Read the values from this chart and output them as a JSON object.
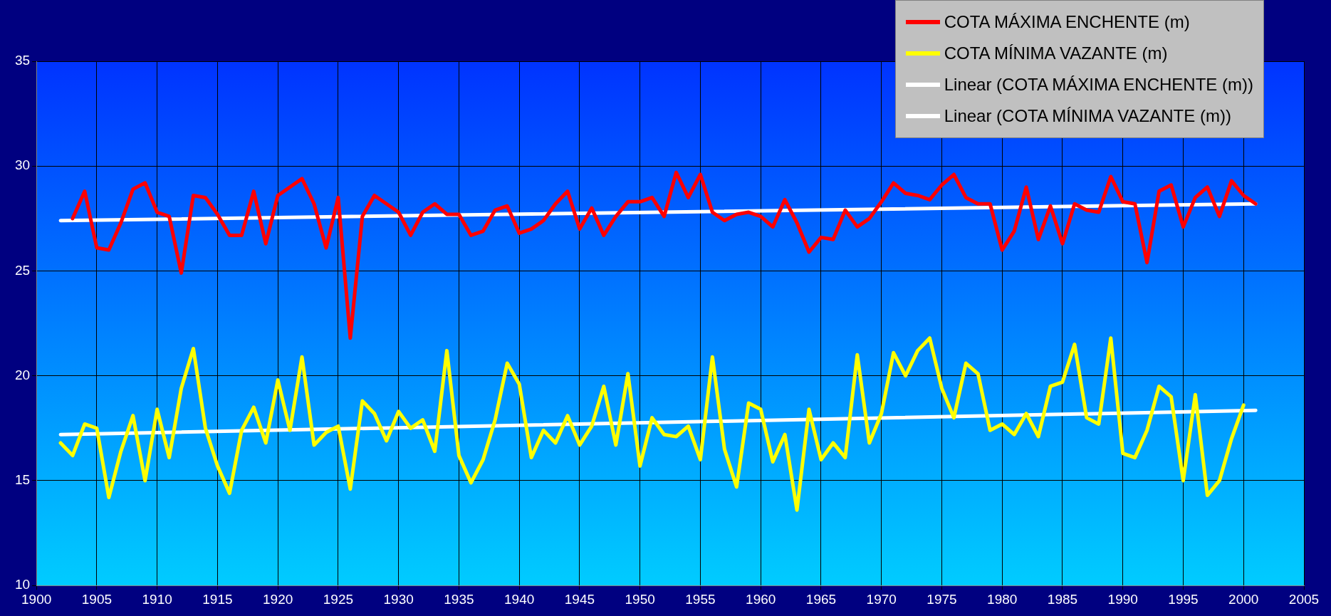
{
  "chart_data": {
    "type": "line",
    "xlim": [
      1900,
      2005
    ],
    "xticks": [
      1900,
      1905,
      1910,
      1915,
      1920,
      1925,
      1930,
      1935,
      1940,
      1945,
      1950,
      1955,
      1960,
      1965,
      1970,
      1975,
      1980,
      1985,
      1990,
      1995,
      2000,
      2005
    ],
    "ylim": [
      10,
      35
    ],
    "yticks": [
      10,
      15,
      20,
      25,
      30,
      35
    ],
    "grid": true,
    "legend": "top right",
    "marker": "none",
    "line_style": "solid",
    "series": [
      {
        "name": "COTA MÁXIMA ENCHENTE (m)",
        "color": "#ff0000",
        "x": [
          1903,
          1904,
          1905,
          1906,
          1907,
          1908,
          1909,
          1910,
          1911,
          1912,
          1913,
          1914,
          1915,
          1916,
          1917,
          1918,
          1919,
          1920,
          1921,
          1922,
          1923,
          1924,
          1925,
          1926,
          1927,
          1928,
          1929,
          1930,
          1931,
          1932,
          1933,
          1934,
          1935,
          1936,
          1937,
          1938,
          1939,
          1940,
          1941,
          1942,
          1943,
          1944,
          1945,
          1946,
          1947,
          1948,
          1949,
          1950,
          1951,
          1952,
          1953,
          1954,
          1955,
          1956,
          1957,
          1958,
          1959,
          1960,
          1961,
          1962,
          1963,
          1964,
          1965,
          1966,
          1967,
          1968,
          1969,
          1970,
          1971,
          1972,
          1973,
          1974,
          1975,
          1976,
          1977,
          1978,
          1979,
          1980,
          1981,
          1982,
          1983,
          1984,
          1985,
          1986,
          1987,
          1988,
          1989,
          1990,
          1991,
          1992,
          1993,
          1994,
          1995,
          1996,
          1997,
          1998,
          1999,
          2000,
          2001
        ],
        "values": [
          27.5,
          28.8,
          26.1,
          26.0,
          27.3,
          28.9,
          29.2,
          27.8,
          27.6,
          24.9,
          28.6,
          28.5,
          27.7,
          26.7,
          26.7,
          28.8,
          26.3,
          28.6,
          29.0,
          29.4,
          28.2,
          26.1,
          28.5,
          21.8,
          27.6,
          28.6,
          28.2,
          27.8,
          26.7,
          27.8,
          28.2,
          27.7,
          27.7,
          26.7,
          26.9,
          27.9,
          28.1,
          26.8,
          27.0,
          27.4,
          28.2,
          28.8,
          27.0,
          28.0,
          26.7,
          27.6,
          28.3,
          28.3,
          28.5,
          27.6,
          29.7,
          28.5,
          29.6,
          27.8,
          27.4,
          27.7,
          27.8,
          27.6,
          27.1,
          28.4,
          27.3,
          25.9,
          26.6,
          26.5,
          27.9,
          27.1,
          27.5,
          28.3,
          29.2,
          28.7,
          28.6,
          28.4,
          29.1,
          29.6,
          28.5,
          28.2,
          28.2,
          26.0,
          26.9,
          29.0,
          26.5,
          28.1,
          26.3,
          28.2,
          27.9,
          27.8,
          29.5,
          28.3,
          28.2,
          25.4,
          28.8,
          29.1,
          27.1,
          28.5,
          29.0,
          27.6,
          29.3,
          28.6,
          28.2
        ]
      },
      {
        "name": "COTA MÍNIMA VAZANTE (m)",
        "color": "#ffff00",
        "x": [
          1902,
          1903,
          1904,
          1905,
          1906,
          1907,
          1908,
          1909,
          1910,
          1911,
          1912,
          1913,
          1914,
          1915,
          1916,
          1917,
          1918,
          1919,
          1920,
          1921,
          1922,
          1923,
          1924,
          1925,
          1926,
          1927,
          1928,
          1929,
          1930,
          1931,
          1932,
          1933,
          1934,
          1935,
          1936,
          1937,
          1938,
          1939,
          1940,
          1941,
          1942,
          1943,
          1944,
          1945,
          1946,
          1947,
          1948,
          1949,
          1950,
          1951,
          1952,
          1953,
          1954,
          1955,
          1956,
          1957,
          1958,
          1959,
          1960,
          1961,
          1962,
          1963,
          1964,
          1965,
          1966,
          1967,
          1968,
          1969,
          1970,
          1971,
          1972,
          1973,
          1974,
          1975,
          1976,
          1977,
          1978,
          1979,
          1980,
          1981,
          1982,
          1983,
          1984,
          1985,
          1986,
          1987,
          1988,
          1989,
          1990,
          1991,
          1992,
          1993,
          1994,
          1995,
          1996,
          1997,
          1998,
          1999,
          2000
        ],
        "values": [
          16.8,
          16.2,
          17.7,
          17.5,
          14.2,
          16.4,
          18.1,
          15.0,
          18.4,
          16.1,
          19.4,
          21.3,
          17.5,
          15.7,
          14.4,
          17.4,
          18.5,
          16.8,
          19.8,
          17.4,
          20.9,
          16.7,
          17.3,
          17.6,
          14.6,
          18.8,
          18.2,
          16.9,
          18.3,
          17.5,
          17.9,
          16.4,
          21.2,
          16.2,
          14.9,
          16.0,
          17.9,
          20.6,
          19.6,
          16.1,
          17.4,
          16.8,
          18.1,
          16.7,
          17.6,
          19.5,
          16.7,
          20.1,
          15.7,
          18.0,
          17.2,
          17.1,
          17.6,
          16.0,
          20.9,
          16.5,
          14.7,
          18.7,
          18.4,
          15.9,
          17.2,
          13.6,
          18.4,
          16.0,
          16.8,
          16.1,
          21.0,
          16.8,
          18.2,
          21.1,
          20.0,
          21.2,
          21.8,
          19.4,
          18.0,
          20.6,
          20.1,
          17.4,
          17.7,
          17.2,
          18.2,
          17.1,
          19.5,
          19.7,
          21.5,
          18.0,
          17.7,
          21.8,
          16.3,
          16.1,
          17.4,
          19.5,
          19.0,
          15.0,
          19.1,
          14.3,
          15.0,
          17.0,
          18.6
        ]
      },
      {
        "name": "Linear (COTA MÁXIMA ENCHENTE (m))",
        "color": "#ffffff",
        "x": [
          1902,
          2001
        ],
        "values": [
          27.4,
          28.2
        ]
      },
      {
        "name": "Linear (COTA MÍNIMA VAZANTE (m))",
        "color": "#ffffff",
        "x": [
          1902,
          2001
        ],
        "values": [
          17.2,
          18.35
        ]
      }
    ]
  }
}
